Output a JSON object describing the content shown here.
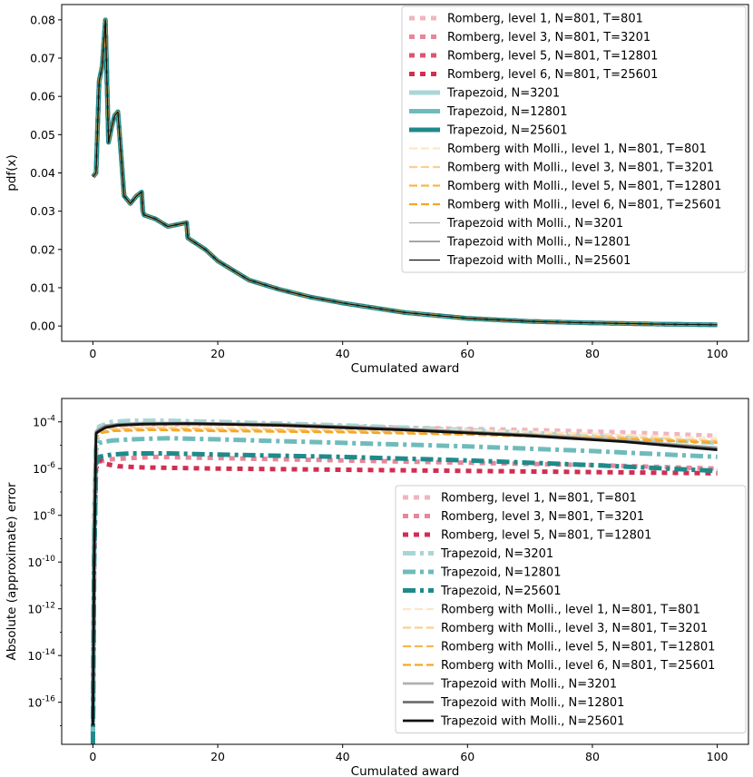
{
  "chart_data": [
    {
      "type": "line",
      "xlabel": "Cumulated award",
      "ylabel": "pdf(x)",
      "xlim": [
        -5,
        105
      ],
      "ylim": [
        -0.004,
        0.084
      ],
      "xticks": [
        0,
        20,
        40,
        60,
        80,
        100
      ],
      "yticks": [
        0.0,
        0.01,
        0.02,
        0.03,
        0.04,
        0.05,
        0.06,
        0.07,
        0.08
      ],
      "ytick_labels": [
        "0.00",
        "0.01",
        "0.02",
        "0.03",
        "0.04",
        "0.05",
        "0.06",
        "0.07",
        "0.08"
      ],
      "legend_position": "top-right",
      "curve": {
        "x": [
          0,
          0.5,
          1,
          1.5,
          2,
          2.5,
          3,
          3.5,
          4,
          5,
          6,
          7,
          7.8,
          8,
          8.2,
          10,
          12,
          15,
          15.2,
          18,
          20,
          25,
          30,
          35,
          40,
          50,
          60,
          70,
          80,
          90,
          100
        ],
        "y": [
          0.039,
          0.04,
          0.064,
          0.068,
          0.08,
          0.048,
          0.052,
          0.055,
          0.056,
          0.034,
          0.032,
          0.034,
          0.035,
          0.03,
          0.029,
          0.028,
          0.026,
          0.027,
          0.023,
          0.02,
          0.017,
          0.012,
          0.0095,
          0.0075,
          0.006,
          0.0035,
          0.002,
          0.0012,
          0.0008,
          0.0005,
          0.0003
        ]
      },
      "series": [
        {
          "name": "Romberg, level 1, N=801, T=801",
          "color": "#f0b5c0",
          "style": "dotted",
          "width": 5
        },
        {
          "name": "Romberg, level 3, N=801, T=3201",
          "color": "#e8869a",
          "style": "dotted",
          "width": 5
        },
        {
          "name": "Romberg, level 5, N=801, T=12801",
          "color": "#dd5574",
          "style": "dotted",
          "width": 5
        },
        {
          "name": "Romberg, level 6, N=801, T=25601",
          "color": "#d22e52",
          "style": "dotted",
          "width": 5
        },
        {
          "name": "Trapezoid, N=3201",
          "color": "#a8d6d6",
          "style": "solid",
          "width": 5
        },
        {
          "name": "Trapezoid, N=12801",
          "color": "#6fbbbb",
          "style": "solid",
          "width": 5
        },
        {
          "name": "Trapezoid, N=25601",
          "color": "#1f8a8a",
          "style": "solid",
          "width": 5
        },
        {
          "name": "Romberg with Molli., level 1, N=801, T=801",
          "color": "#fde6c4",
          "style": "dashed",
          "width": 2.2
        },
        {
          "name": "Romberg with Molli., level 3, N=801, T=3201",
          "color": "#fccf92",
          "style": "dashed",
          "width": 2.2
        },
        {
          "name": "Romberg with Molli., level 5, N=801, T=12801",
          "color": "#f9b64d",
          "style": "dashed",
          "width": 2.2
        },
        {
          "name": "Romberg with Molli., level 6, N=801, T=25601",
          "color": "#f5a623",
          "style": "dashed",
          "width": 2.2
        },
        {
          "name": "Trapezoid with Molli., N=3201",
          "color": "#b0b0b0",
          "style": "solid",
          "width": 1.3
        },
        {
          "name": "Trapezoid with Molli., N=12801",
          "color": "#707070",
          "style": "solid",
          "width": 1.3
        },
        {
          "name": "Trapezoid with Molli., N=25601",
          "color": "#111111",
          "style": "solid",
          "width": 1.3
        }
      ]
    },
    {
      "type": "line",
      "xlabel": "Cumulated award",
      "ylabel": "Absolute (approximate) error",
      "yscale": "log",
      "xlim": [
        -5,
        105
      ],
      "ylim_log10": [
        -17.8,
        -3.0
      ],
      "xticks": [
        0,
        20,
        40,
        60,
        80,
        100
      ],
      "yticks_exponent": [
        -16,
        -14,
        -12,
        -10,
        -8,
        -6,
        -4
      ],
      "ytick_base": "10",
      "legend_position": "bottom-right",
      "series": [
        {
          "name": "Romberg, level 1, N=801, T=801",
          "color": "#f0b5c0",
          "style": "dotted",
          "width": 5,
          "x": [
            0,
            0.2,
            0.5,
            1,
            3,
            8,
            15,
            30,
            50,
            70,
            85,
            100
          ],
          "log10y": [
            -17,
            -8,
            -5,
            -4.4,
            -4.2,
            -4.12,
            -4.1,
            -4.15,
            -4.25,
            -4.35,
            -4.45,
            -4.6
          ]
        },
        {
          "name": "Romberg, level 3, N=801, T=3201",
          "color": "#e8869a",
          "style": "dotted",
          "width": 5,
          "x": [
            0,
            0.2,
            0.5,
            1,
            3,
            6,
            10,
            20,
            40,
            60,
            80,
            100
          ],
          "log10y": [
            -17.2,
            -9,
            -5.4,
            -5.7,
            -5.6,
            -5.55,
            -5.5,
            -5.55,
            -5.65,
            -5.75,
            -5.85,
            -6
          ]
        },
        {
          "name": "Romberg, level 5, N=801, T=12801",
          "color": "#d22e52",
          "style": "dotted",
          "width": 5,
          "x": [
            0,
            0.2,
            0.5,
            1,
            2,
            4,
            8,
            20,
            40,
            60,
            80,
            100
          ],
          "log10y": [
            -17.3,
            -10,
            -6,
            -5.6,
            -5.8,
            -5.9,
            -5.95,
            -6,
            -6.05,
            -6.1,
            -6.15,
            -6.2
          ]
        },
        {
          "name": "Trapezoid, N=3201",
          "color": "#a8d6d6",
          "style": "dashdot",
          "width": 5,
          "x": [
            0,
            0.2,
            0.5,
            1,
            3,
            6,
            12,
            20,
            40,
            60,
            80,
            100
          ],
          "log10y": [
            -17.5,
            -8,
            -4.9,
            -4.2,
            -4.0,
            -3.95,
            -3.95,
            -4.0,
            -4.15,
            -4.35,
            -4.6,
            -4.9
          ]
        },
        {
          "name": "Trapezoid, N=12801",
          "color": "#6fbbbb",
          "style": "dashdot",
          "width": 5,
          "x": [
            0,
            0.2,
            0.5,
            1,
            3,
            6,
            12,
            20,
            40,
            60,
            80,
            100
          ],
          "log10y": [
            -17.6,
            -9,
            -5.2,
            -4.9,
            -4.8,
            -4.75,
            -4.7,
            -4.75,
            -4.9,
            -5.05,
            -5.25,
            -5.5
          ]
        },
        {
          "name": "Trapezoid, N=25601",
          "color": "#1f8a8a",
          "style": "dashdot",
          "width": 5,
          "x": [
            0,
            0.2,
            0.5,
            1,
            3,
            6,
            12,
            20,
            40,
            60,
            80,
            100
          ],
          "log10y": [
            -17.8,
            -10,
            -5.8,
            -5.5,
            -5.4,
            -5.35,
            -5.35,
            -5.4,
            -5.5,
            -5.65,
            -5.85,
            -6.1
          ]
        },
        {
          "name": "Romberg with Molli., level 1, N=801, T=801",
          "color": "#fde6c4",
          "style": "dashed",
          "width": 2.2,
          "x": [
            0,
            0.2,
            0.5,
            1,
            3,
            10,
            20,
            40,
            60,
            80,
            100
          ],
          "log10y": [
            -17,
            -7,
            -4.5,
            -4.3,
            -4.2,
            -4.15,
            -4.2,
            -4.25,
            -4.35,
            -4.5,
            -4.7
          ]
        },
        {
          "name": "Romberg with Molli., level 3, N=801, T=3201",
          "color": "#fccf92",
          "style": "dashed",
          "width": 2.2,
          "x": [
            0,
            0.2,
            0.5,
            1,
            3,
            10,
            20,
            40,
            60,
            80,
            100
          ],
          "log10y": [
            -17,
            -7.5,
            -4.6,
            -4.35,
            -4.3,
            -4.25,
            -4.3,
            -4.35,
            -4.45,
            -4.6,
            -4.8
          ]
        },
        {
          "name": "Romberg with Molli., level 5, N=801, T=12801",
          "color": "#f9b64d",
          "style": "dashed",
          "width": 2.2,
          "x": [
            0,
            0.2,
            0.5,
            1,
            3,
            10,
            20,
            40,
            60,
            80,
            100
          ],
          "log10y": [
            -17,
            -7.8,
            -4.7,
            -4.45,
            -4.35,
            -4.3,
            -4.35,
            -4.4,
            -4.5,
            -4.65,
            -4.85
          ]
        },
        {
          "name": "Romberg with Molli., level 6, N=801, T=25601",
          "color": "#f5a623",
          "style": "dashed",
          "width": 2.2,
          "x": [
            0,
            0.2,
            0.5,
            1,
            3,
            10,
            20,
            40,
            60,
            80,
            100
          ],
          "log10y": [
            -17,
            -8,
            -4.75,
            -4.5,
            -4.4,
            -4.35,
            -4.4,
            -4.45,
            -4.55,
            -4.7,
            -4.9
          ]
        },
        {
          "name": "Trapezoid with Molli., N=3201",
          "color": "#b0b0b0",
          "style": "solid",
          "width": 2.8,
          "x": [
            0,
            0.2,
            0.5,
            1,
            2,
            4,
            8,
            15,
            30,
            50,
            70,
            85,
            100
          ],
          "log10y": [
            -17,
            -9,
            -4.4,
            -4.3,
            -4.15,
            -4.1,
            -4.05,
            -4.05,
            -4.1,
            -4.3,
            -4.55,
            -4.8,
            -5.1
          ]
        },
        {
          "name": "Trapezoid with Molli., N=12801",
          "color": "#707070",
          "style": "solid",
          "width": 2.8,
          "x": [
            0,
            0.2,
            0.5,
            1,
            2,
            4,
            8,
            15,
            30,
            50,
            70,
            85,
            100
          ],
          "log10y": [
            -17,
            -9.5,
            -4.45,
            -4.35,
            -4.2,
            -4.12,
            -4.08,
            -4.06,
            -4.12,
            -4.32,
            -4.57,
            -4.83,
            -5.15
          ]
        },
        {
          "name": "Trapezoid with Molli., N=25601",
          "color": "#111111",
          "style": "solid",
          "width": 2.8,
          "x": [
            0,
            0.2,
            0.5,
            1,
            2,
            4,
            8,
            15,
            30,
            50,
            70,
            85,
            100
          ],
          "log10y": [
            -17,
            -10,
            -4.5,
            -4.4,
            -4.25,
            -4.15,
            -4.1,
            -4.08,
            -4.15,
            -4.35,
            -4.6,
            -4.85,
            -5.2
          ]
        }
      ]
    }
  ]
}
